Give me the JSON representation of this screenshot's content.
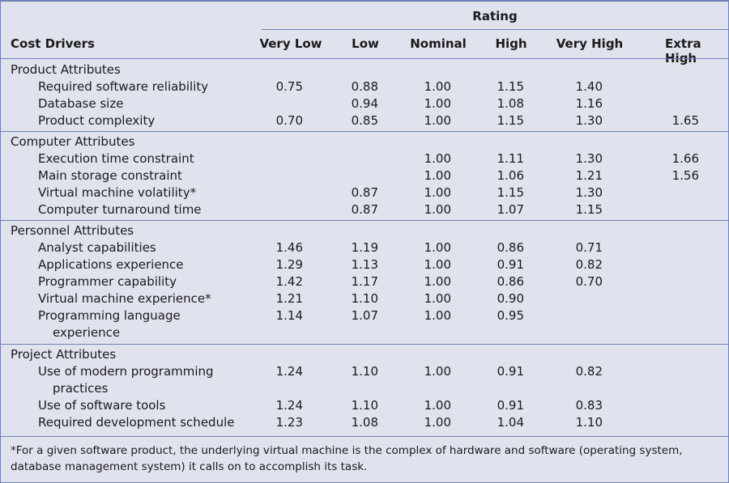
{
  "header": {
    "rating_label": "Rating",
    "cost_drivers_label": "Cost Drivers",
    "columns": [
      "Very Low",
      "Low",
      "Nominal",
      "High",
      "Very High",
      "Extra High"
    ]
  },
  "groups": [
    {
      "title": "Product Attributes",
      "rows": [
        {
          "label": [
            "Required software reliability"
          ],
          "values": [
            "0.75",
            "0.88",
            "1.00",
            "1.15",
            "1.40",
            ""
          ]
        },
        {
          "label": [
            "Database size"
          ],
          "values": [
            "",
            "0.94",
            "1.00",
            "1.08",
            "1.16",
            ""
          ]
        },
        {
          "label": [
            "Product complexity"
          ],
          "values": [
            "0.70",
            "0.85",
            "1.00",
            "1.15",
            "1.30",
            "1.65"
          ]
        }
      ]
    },
    {
      "title": "Computer Attributes",
      "rows": [
        {
          "label": [
            "Execution time constraint"
          ],
          "values": [
            "",
            "",
            "1.00",
            "1.11",
            "1.30",
            "1.66"
          ]
        },
        {
          "label": [
            "Main storage constraint"
          ],
          "values": [
            "",
            "",
            "1.00",
            "1.06",
            "1.21",
            "1.56"
          ]
        },
        {
          "label": [
            "Virtual machine volatility*"
          ],
          "values": [
            "",
            "0.87",
            "1.00",
            "1.15",
            "1.30",
            ""
          ]
        },
        {
          "label": [
            "Computer turnaround time"
          ],
          "values": [
            "",
            "0.87",
            "1.00",
            "1.07",
            "1.15",
            ""
          ]
        }
      ]
    },
    {
      "title": "Personnel Attributes",
      "rows": [
        {
          "label": [
            "Analyst capabilities"
          ],
          "values": [
            "1.46",
            "1.19",
            "1.00",
            "0.86",
            "0.71",
            ""
          ]
        },
        {
          "label": [
            "Applications experience"
          ],
          "values": [
            "1.29",
            "1.13",
            "1.00",
            "0.91",
            "0.82",
            ""
          ]
        },
        {
          "label": [
            "Programmer capability"
          ],
          "values": [
            "1.42",
            "1.17",
            "1.00",
            "0.86",
            "0.70",
            ""
          ]
        },
        {
          "label": [
            "Virtual machine experience*"
          ],
          "values": [
            "1.21",
            "1.10",
            "1.00",
            "0.90",
            "",
            ""
          ]
        },
        {
          "label": [
            "Programming language",
            "experience"
          ],
          "values": [
            "1.14",
            "1.07",
            "1.00",
            "0.95",
            "",
            ""
          ]
        }
      ]
    },
    {
      "title": "Project Attributes",
      "rows": [
        {
          "label": [
            "Use of modern programming",
            "practices"
          ],
          "values": [
            "1.24",
            "1.10",
            "1.00",
            "0.91",
            "0.82",
            ""
          ]
        },
        {
          "label": [
            "Use of software tools"
          ],
          "values": [
            "1.24",
            "1.10",
            "1.00",
            "0.91",
            "0.83",
            ""
          ]
        },
        {
          "label": [
            "Required development schedule"
          ],
          "values": [
            "1.23",
            "1.08",
            "1.00",
            "1.04",
            "1.10",
            ""
          ]
        }
      ]
    }
  ],
  "footnote": "*For a given software product, the underlying virtual machine is the complex of hardware and software (operating system, database management system) it calls on to accomplish its task."
}
